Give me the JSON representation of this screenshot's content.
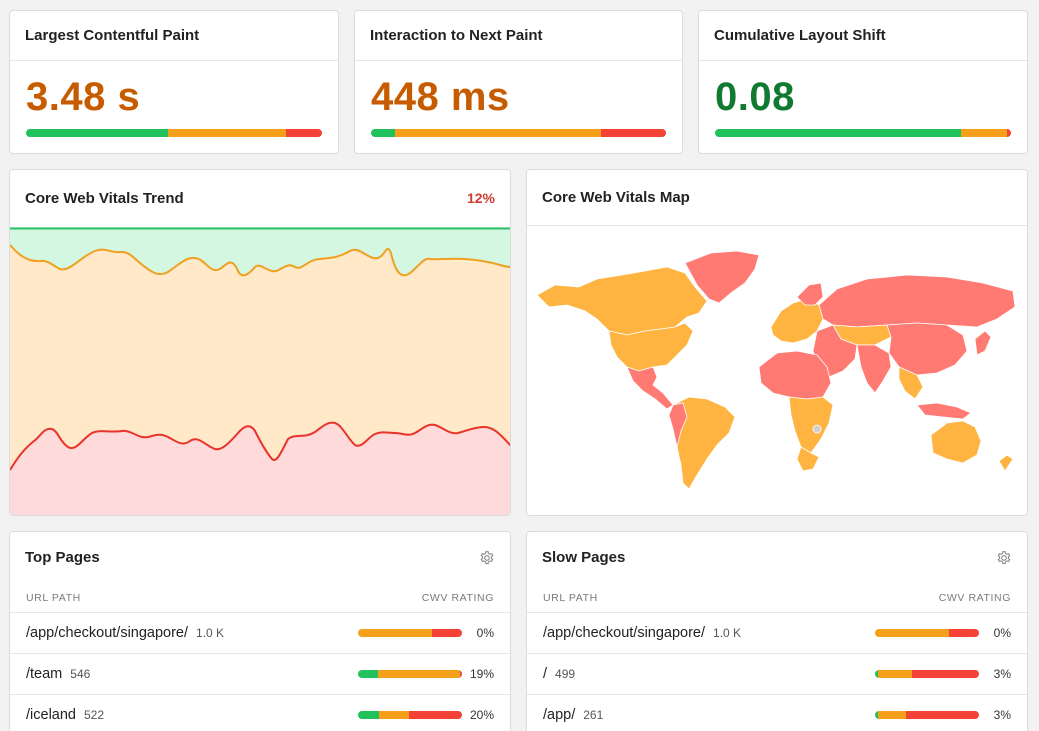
{
  "metrics": [
    {
      "title": "Largest Contentful Paint",
      "value": "3.48 s",
      "color": "#c75b00",
      "dist": [
        48,
        40,
        12
      ]
    },
    {
      "title": "Interaction to Next Paint",
      "value": "448 ms",
      "color": "#c75b00",
      "dist": [
        8,
        70,
        22
      ]
    },
    {
      "title": "Cumulative Layout Shift",
      "value": "0.08",
      "color": "#0f7a30",
      "dist": [
        83,
        15.5,
        1.5
      ]
    }
  ],
  "trend": {
    "title": "Core Web Vitals Trend",
    "percent": "12%"
  },
  "map": {
    "title": "Core Web Vitals Map"
  },
  "top_pages": {
    "title": "Top Pages",
    "col_url": "URL PATH",
    "col_rating": "CWV RATING",
    "rows": [
      {
        "path": "/app/checkout/singapore/",
        "count": "1.0 K",
        "dist": [
          0,
          71,
          29
        ],
        "pct": "0%"
      },
      {
        "path": "/team",
        "count": "546",
        "dist": [
          19,
          79,
          2
        ],
        "pct": "19%"
      },
      {
        "path": "/iceland",
        "count": "522",
        "dist": [
          20,
          29,
          51
        ],
        "pct": "20%"
      }
    ]
  },
  "slow_pages": {
    "title": "Slow Pages",
    "col_url": "URL PATH",
    "col_rating": "CWV RATING",
    "rows": [
      {
        "path": "/app/checkout/singapore/",
        "count": "1.0 K",
        "dist": [
          0,
          71,
          29
        ],
        "pct": "0%"
      },
      {
        "path": "/",
        "count": "499",
        "dist": [
          3,
          33,
          64
        ],
        "pct": "3%"
      },
      {
        "path": "/app/",
        "count": "261",
        "dist": [
          3,
          27,
          70
        ],
        "pct": "3%"
      }
    ]
  }
}
